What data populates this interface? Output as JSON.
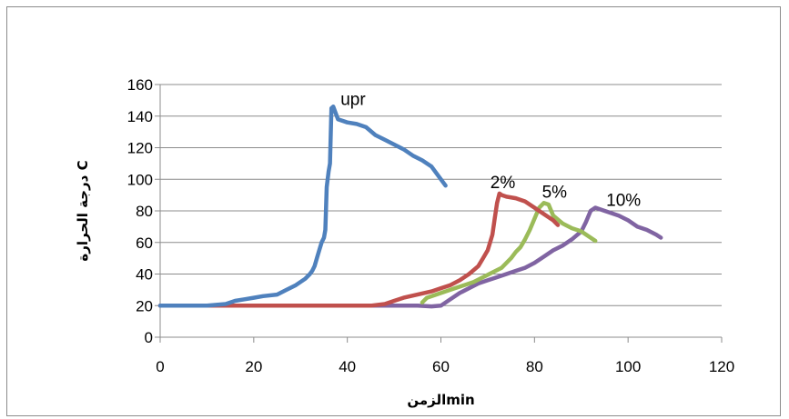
{
  "chart_data": {
    "type": "line",
    "xlabel": "الزمنmin",
    "ylabel": "درجة الحرارة C",
    "xlim": [
      0,
      120
    ],
    "ylim": [
      0,
      160
    ],
    "x_ticks": [
      "0",
      "20",
      "40",
      "60",
      "80",
      "100",
      "120"
    ],
    "y_ticks": [
      "0",
      "20",
      "40",
      "60",
      "80",
      "100",
      "120",
      "140",
      "160"
    ],
    "grid": "horizontal",
    "legend": "none",
    "series": [
      {
        "name": "upr",
        "color": "#4f81bd",
        "x": [
          0,
          10,
          14,
          16,
          18,
          20,
          22,
          25,
          27,
          29,
          31,
          32,
          32.5,
          33,
          33.5,
          34,
          34.5,
          35,
          35.3,
          35.6,
          36,
          36.3,
          36.6,
          37,
          37.5,
          38,
          40,
          42,
          44,
          46,
          48,
          50,
          52,
          54,
          56,
          58,
          60,
          61
        ],
        "y": [
          20,
          20,
          21,
          23,
          24,
          25,
          26,
          27,
          30,
          33,
          37,
          40,
          42,
          45,
          50,
          55,
          60,
          63,
          68,
          95,
          105,
          110,
          145,
          146,
          142,
          138,
          136,
          135,
          133,
          128,
          125,
          122,
          119,
          115,
          112,
          108,
          100,
          96
        ]
      },
      {
        "name": "2%",
        "color": "#c0504d",
        "x": [
          0,
          40,
          45,
          48,
          50,
          52,
          55,
          58,
          60,
          62,
          64,
          66,
          68,
          69,
          70,
          70.5,
          71,
          71.5,
          72,
          72.5,
          73,
          74,
          76,
          78,
          80,
          82,
          84,
          85
        ],
        "y": [
          20,
          20,
          20,
          21,
          23,
          25,
          27,
          29,
          31,
          33,
          36,
          40,
          45,
          50,
          55,
          60,
          65,
          75,
          85,
          91,
          90,
          89,
          88,
          86,
          82,
          78,
          74,
          71
        ]
      },
      {
        "name": "5%",
        "color": "#9bbb59",
        "x": [
          56,
          57,
          59,
          61,
          63,
          65,
          67,
          69,
          71,
          73,
          75,
          76,
          77,
          78,
          79,
          80,
          81,
          82,
          83,
          84,
          86,
          88,
          90,
          92,
          93
        ],
        "y": [
          22,
          25,
          27,
          29,
          31,
          33,
          35,
          38,
          41,
          44,
          50,
          54,
          57,
          62,
          68,
          75,
          82,
          85,
          84,
          77,
          72,
          69,
          67,
          63,
          61
        ]
      },
      {
        "name": "10%",
        "color": "#8064a2",
        "x": [
          0,
          55,
          58,
          60,
          62,
          64,
          66,
          68,
          70,
          72,
          74,
          76,
          78,
          80,
          82,
          84,
          86,
          88,
          90,
          91,
          92,
          93,
          94,
          96,
          98,
          100,
          102,
          104,
          106,
          107
        ],
        "y": [
          20,
          20,
          19.5,
          20,
          24,
          28,
          31,
          34,
          36,
          38,
          40,
          42,
          44,
          47,
          51,
          55,
          58,
          62,
          67,
          73,
          80,
          82,
          81,
          79,
          77,
          74,
          70,
          68,
          65,
          63
        ]
      }
    ]
  }
}
